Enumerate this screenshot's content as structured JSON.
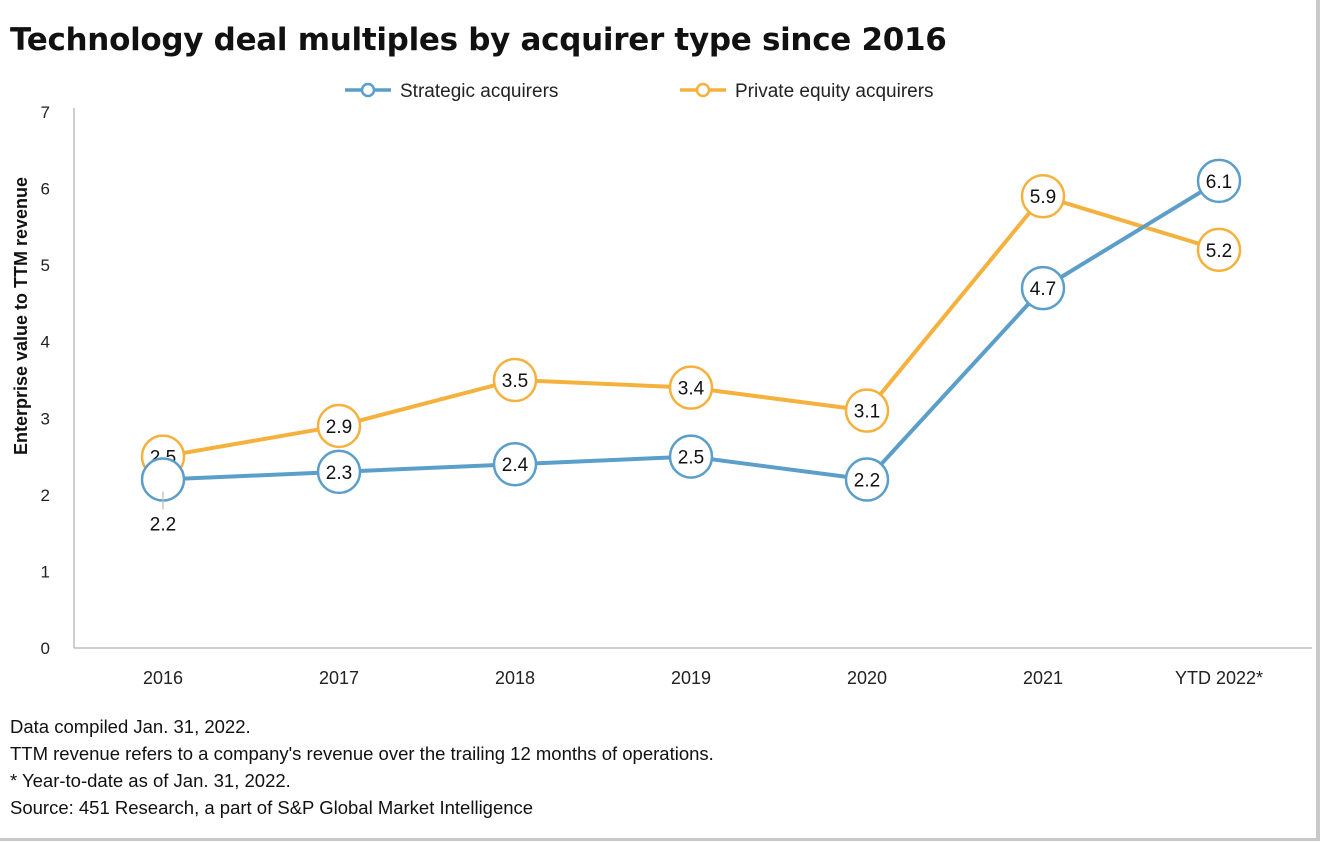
{
  "title": "Technology deal multiples by acquirer type since 2016",
  "chart_data": {
    "type": "line",
    "categories": [
      "2016",
      "2017",
      "2018",
      "2019",
      "2020",
      "2021",
      "YTD 2022*"
    ],
    "series": [
      {
        "name": "Strategic acquirers",
        "color": "#5b9ec9",
        "values": [
          2.2,
          2.3,
          2.4,
          2.5,
          2.2,
          4.7,
          6.1
        ]
      },
      {
        "name": "Private equity acquirers",
        "color": "#f5b13d",
        "values": [
          2.5,
          2.9,
          3.5,
          3.4,
          3.1,
          5.9,
          5.2
        ]
      }
    ],
    "xlabel": "",
    "ylabel": "Enterprise value to TTM revenue",
    "ylim": [
      0,
      7
    ],
    "yticks": [
      "0",
      "1",
      "2",
      "3",
      "4",
      "5",
      "6",
      "7"
    ],
    "grid": false,
    "legend": "top-center",
    "data_labels": true
  },
  "notes": [
    "Data compiled Jan. 31, 2022.",
    "TTM revenue refers to a company's revenue over the trailing 12 months of operations.",
    "* Year-to-date as of Jan. 31, 2022.",
    "Source: 451 Research, a part of S&P Global Market Intelligence"
  ]
}
